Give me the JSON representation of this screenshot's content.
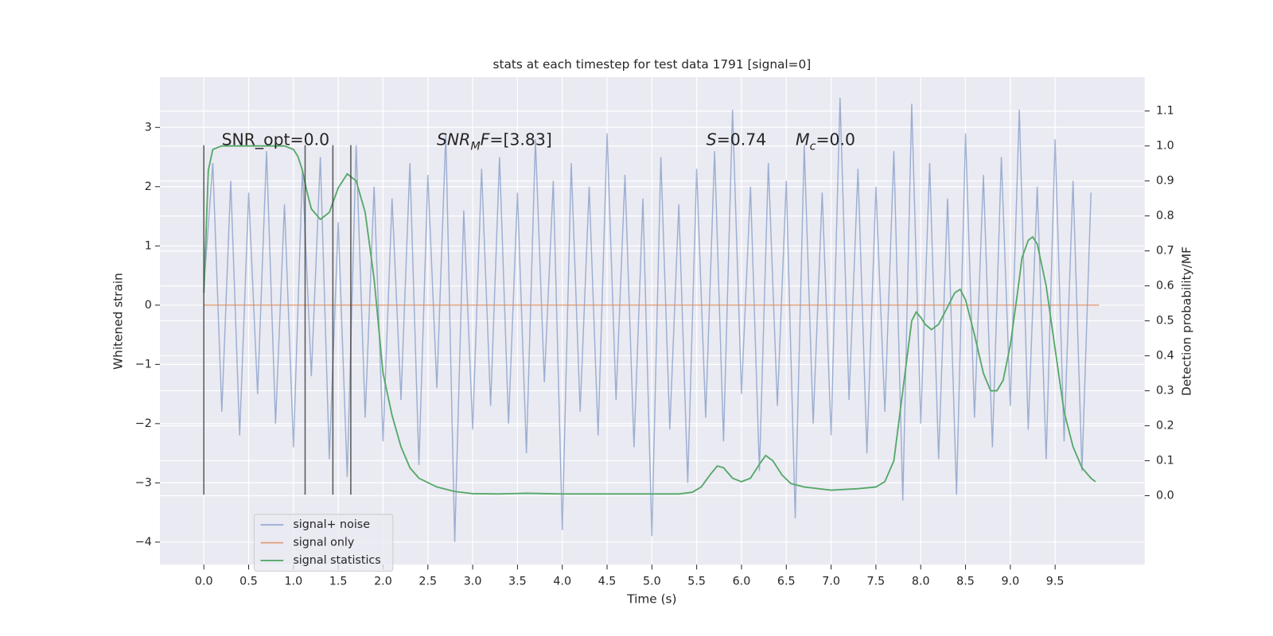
{
  "chart_data": {
    "type": "line",
    "title": "stats at each timestep for test data 1791 [signal=0]",
    "x_label": "Time (s)",
    "y_label": "Whitened strain",
    "y2_label": "Detection probability/MF",
    "xlim": [
      -0.49,
      10.5
    ],
    "ylim": [
      -4.38,
      3.85
    ],
    "y2lim": [
      -0.197,
      1.197
    ],
    "xticks": [
      {
        "value": 0,
        "label": "0.0"
      },
      0.5,
      {
        "value": 1,
        "label": "1.0"
      },
      1.5,
      {
        "value": 2,
        "label": "2.0"
      },
      2.5,
      {
        "value": 3,
        "label": "3.0"
      },
      3.5,
      {
        "value": 4,
        "label": "4.0"
      },
      4.5,
      {
        "value": 5,
        "label": "5.0"
      },
      5.5,
      {
        "value": 6,
        "label": "6.0"
      },
      6.5,
      {
        "value": 7,
        "label": "7.0"
      },
      7.5,
      {
        "value": 8,
        "label": "8.0"
      },
      8.5,
      {
        "value": 9,
        "label": "9.0"
      },
      9.5
    ],
    "yticks": [
      {
        "value": -4,
        "label": "−4"
      },
      {
        "value": -3,
        "label": "−3"
      },
      {
        "value": -2,
        "label": "−2"
      },
      {
        "value": -1,
        "label": "−1"
      },
      0,
      1,
      2,
      3
    ],
    "y2ticks": [
      {
        "value": 0,
        "label": "0.0"
      },
      0.1,
      0.2,
      0.3,
      0.4,
      0.5,
      0.6,
      0.7,
      0.8,
      0.9,
      {
        "value": 1,
        "label": "1.0"
      },
      1.1
    ],
    "grid": true,
    "legend": "lower left",
    "series": [
      {
        "name": "signal+ noise",
        "color": "#4c72b0",
        "opacity": 0.5,
        "x": [
          0,
          0.1,
          0.2,
          0.3,
          0.4,
          0.5,
          0.6,
          0.7,
          0.8,
          0.9,
          1,
          1.1,
          1.2,
          1.3,
          1.4,
          1.5,
          1.6,
          1.7,
          1.8,
          1.9,
          2,
          2.1,
          2.2,
          2.3,
          2.4,
          2.5,
          2.6,
          2.7,
          2.8,
          2.9,
          3,
          3.1,
          3.2,
          3.3,
          3.4,
          3.5,
          3.6,
          3.7,
          3.8,
          3.9,
          4,
          4.1,
          4.2,
          4.3,
          4.4,
          4.5,
          4.6,
          4.7,
          4.8,
          4.9,
          5,
          5.1,
          5.2,
          5.3,
          5.4,
          5.5,
          5.6,
          5.7,
          5.8,
          5.9,
          6,
          6.1,
          6.2,
          6.3,
          6.4,
          6.5,
          6.6,
          6.7,
          6.8,
          6.9,
          7,
          7.1,
          7.2,
          7.3,
          7.4,
          7.5,
          7.6,
          7.7,
          7.8,
          7.9,
          8,
          8.1,
          8.2,
          8.3,
          8.4,
          8.5,
          8.6,
          8.7,
          8.8,
          8.9,
          9,
          9.1,
          9.2,
          9.3,
          9.4,
          9.5,
          9.6,
          9.7,
          9.8,
          9.9
        ],
        "values": [
          0.3,
          2.4,
          -1.8,
          2.1,
          -2.2,
          1.9,
          -1.5,
          2.6,
          -2.0,
          1.7,
          -2.4,
          2.3,
          -1.2,
          2.5,
          -2.6,
          1.4,
          -2.9,
          2.7,
          -1.9,
          2.0,
          -2.3,
          1.8,
          -1.6,
          2.4,
          -2.7,
          2.2,
          -1.4,
          2.9,
          -4.0,
          1.6,
          -2.1,
          2.3,
          -1.7,
          2.5,
          -2.0,
          1.9,
          -2.5,
          2.8,
          -1.3,
          2.1,
          -3.8,
          2.4,
          -1.8,
          2.0,
          -2.2,
          2.9,
          -1.6,
          2.2,
          -2.4,
          1.8,
          -3.9,
          2.5,
          -2.1,
          1.7,
          -3.0,
          2.3,
          -1.9,
          2.6,
          -2.3,
          3.3,
          -1.5,
          2.0,
          -2.8,
          2.4,
          -1.7,
          2.1,
          -3.6,
          2.7,
          -2.0,
          1.9,
          -2.2,
          3.5,
          -1.6,
          2.3,
          -2.5,
          2.0,
          -1.8,
          2.6,
          -3.3,
          3.4,
          -2.0,
          2.4,
          -2.6,
          1.8,
          -3.2,
          2.9,
          -1.9,
          2.2,
          -2.4,
          2.5,
          -1.7,
          3.3,
          -2.1,
          2.0,
          -2.6,
          2.8,
          -2.3,
          2.1,
          -2.8,
          1.9
        ]
      },
      {
        "name": "signal only",
        "color": "#dd8452",
        "opacity": 0.7,
        "x": [
          0,
          9.99
        ],
        "values": [
          0,
          0
        ]
      },
      {
        "name": "signal statistics",
        "color": "#55a868",
        "opacity": 1,
        "axis": "y2",
        "x": [
          0,
          0.05,
          0.1,
          0.2,
          0.5,
          0.9,
          1.0,
          1.05,
          1.1,
          1.15,
          1.2,
          1.3,
          1.4,
          1.5,
          1.6,
          1.7,
          1.8,
          1.9,
          2.0,
          2.1,
          2.2,
          2.3,
          2.4,
          2.6,
          2.8,
          3.0,
          3.3,
          3.6,
          4.0,
          4.5,
          5.0,
          5.3,
          5.45,
          5.55,
          5.65,
          5.73,
          5.8,
          5.9,
          6.0,
          6.1,
          6.2,
          6.27,
          6.35,
          6.45,
          6.55,
          6.7,
          7.0,
          7.3,
          7.5,
          7.6,
          7.7,
          7.8,
          7.9,
          7.95,
          8.0,
          8.05,
          8.12,
          8.2,
          8.3,
          8.38,
          8.44,
          8.5,
          8.6,
          8.7,
          8.78,
          8.85,
          8.92,
          9.0,
          9.08,
          9.13,
          9.2,
          9.25,
          9.3,
          9.4,
          9.5,
          9.6,
          9.7,
          9.8,
          9.9,
          9.95
        ],
        "values": [
          0.58,
          0.93,
          0.99,
          1.0,
          1.0,
          1.0,
          0.99,
          0.97,
          0.93,
          0.87,
          0.82,
          0.79,
          0.81,
          0.88,
          0.92,
          0.9,
          0.81,
          0.62,
          0.35,
          0.23,
          0.14,
          0.08,
          0.05,
          0.025,
          0.012,
          0.006,
          0.005,
          0.007,
          0.005,
          0.005,
          0.005,
          0.005,
          0.01,
          0.025,
          0.06,
          0.085,
          0.08,
          0.05,
          0.04,
          0.05,
          0.09,
          0.115,
          0.1,
          0.06,
          0.035,
          0.025,
          0.016,
          0.02,
          0.025,
          0.04,
          0.1,
          0.3,
          0.5,
          0.525,
          0.51,
          0.49,
          0.475,
          0.49,
          0.54,
          0.58,
          0.59,
          0.56,
          0.46,
          0.35,
          0.3,
          0.3,
          0.33,
          0.43,
          0.58,
          0.68,
          0.73,
          0.74,
          0.72,
          0.6,
          0.42,
          0.24,
          0.14,
          0.08,
          0.05,
          0.04
        ]
      }
    ],
    "markers": {
      "x": [
        0,
        1.13,
        1.44,
        1.64
      ],
      "ymin": -3.2,
      "ymax": 2.7,
      "color": "#333333"
    },
    "annotations": [
      {
        "parts": [
          {
            "text": "SNR_opt=0.0"
          }
        ]
      },
      {
        "parts": [
          {
            "text": "SNR",
            "italic": true
          },
          {
            "text": "M",
            "italic": true,
            "sub": true
          },
          {
            "text": "F",
            "italic": true
          },
          {
            "text": "=[3.83]"
          }
        ]
      },
      {
        "parts": [
          {
            "text": "S",
            "italic": true
          },
          {
            "text": "=0.74"
          }
        ]
      },
      {
        "parts": [
          {
            "text": "M",
            "italic": true
          },
          {
            "text": "c",
            "italic": true,
            "sub": true
          },
          {
            "text": "=0.0"
          }
        ]
      }
    ]
  }
}
